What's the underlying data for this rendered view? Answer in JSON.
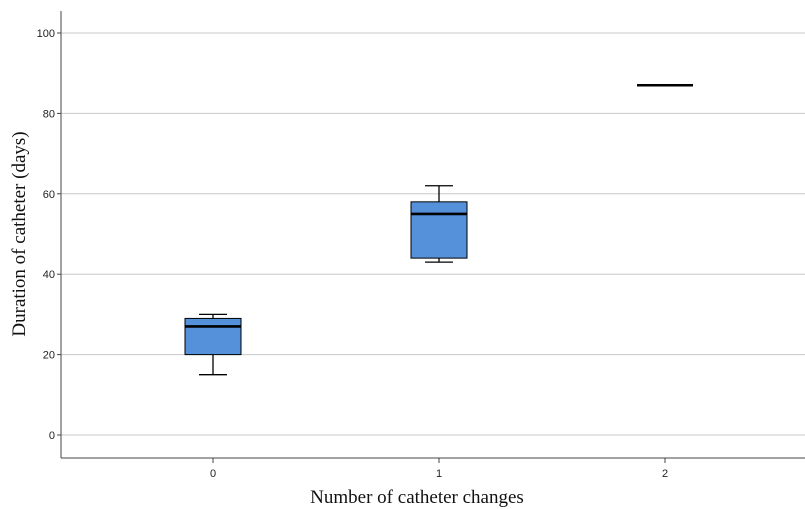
{
  "chart_data": {
    "type": "boxplot",
    "xlabel": "Number of catheter changes",
    "ylabel": "Duration of catheter (days)",
    "categories": [
      "0",
      "1",
      "2"
    ],
    "ylim": [
      -5,
      105
    ],
    "yticks": [
      0,
      20,
      40,
      60,
      80,
      100
    ],
    "grid": true,
    "box_color": "#5591DB",
    "boxes": [
      {
        "category": "0",
        "whisker_low": 15,
        "q1": 20,
        "median": 27,
        "q3": 29,
        "whisker_high": 30
      },
      {
        "category": "1",
        "whisker_low": 43,
        "q1": 44,
        "median": 55,
        "q3": 58,
        "whisker_high": 62
      },
      {
        "category": "2",
        "median": 87
      }
    ]
  }
}
